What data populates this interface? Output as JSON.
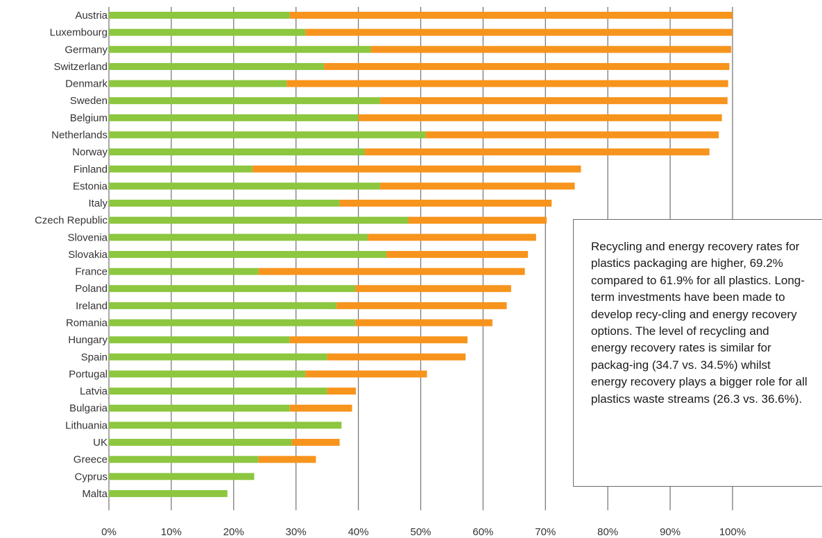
{
  "chart_data": {
    "type": "bar",
    "stacked": true,
    "orientation": "horizontal",
    "categories": [
      "Austria",
      "Luxembourg",
      "Germany",
      "Switzerland",
      "Denmark",
      "Sweden",
      "Belgium",
      "Netherlands",
      "Norway",
      "Finland",
      "Estonia",
      "Italy",
      "Czech Republic",
      "Slovenia",
      "Slovakia",
      "France",
      "Poland",
      "Ireland",
      "Romania",
      "Hungary",
      "Spain",
      "Portugal",
      "Latvia",
      "Bulgaria",
      "Lithuania",
      "UK",
      "Greece",
      "Cyprus",
      "Malta"
    ],
    "series": [
      {
        "color": "#8dc63f",
        "values": [
          29,
          31.5,
          42,
          34.5,
          28.5,
          43.5,
          40,
          50.8,
          41,
          23,
          43.5,
          37,
          48,
          41.5,
          44.5,
          24,
          39.5,
          36.5,
          39.5,
          29,
          35,
          31.5,
          35,
          29,
          37.3,
          29.3,
          24,
          23.3,
          19
        ]
      },
      {
        "color": "#f7941d",
        "values": [
          71,
          68.5,
          57.8,
          65,
          70.8,
          55.7,
          58.3,
          47,
          55.3,
          52.7,
          31.2,
          34,
          22.2,
          27,
          22.7,
          42.7,
          25,
          27.3,
          22,
          28.5,
          22.2,
          19.5,
          4.6,
          10,
          0,
          7.7,
          9.2,
          0,
          0
        ]
      }
    ],
    "xticks": [
      "0%",
      "10%",
      "20%",
      "30%",
      "40%",
      "50%",
      "60%",
      "70%",
      "80%",
      "90%",
      "100%"
    ],
    "xlim": [
      0,
      100
    ],
    "grid": true
  },
  "annotation": {
    "text": "Recycling and energy recovery rates for plastics packaging are higher, 69.2% compared to 61.9% for all plastics. Long-term investments have been made to develop recy-cling and energy recovery options. The level of recycling and energy recovery rates is similar for packag-ing (34.7 vs. 34.5%) whilst energy recovery plays a bigger role for all plastics waste streams (26.3 vs. 36.6%)."
  }
}
